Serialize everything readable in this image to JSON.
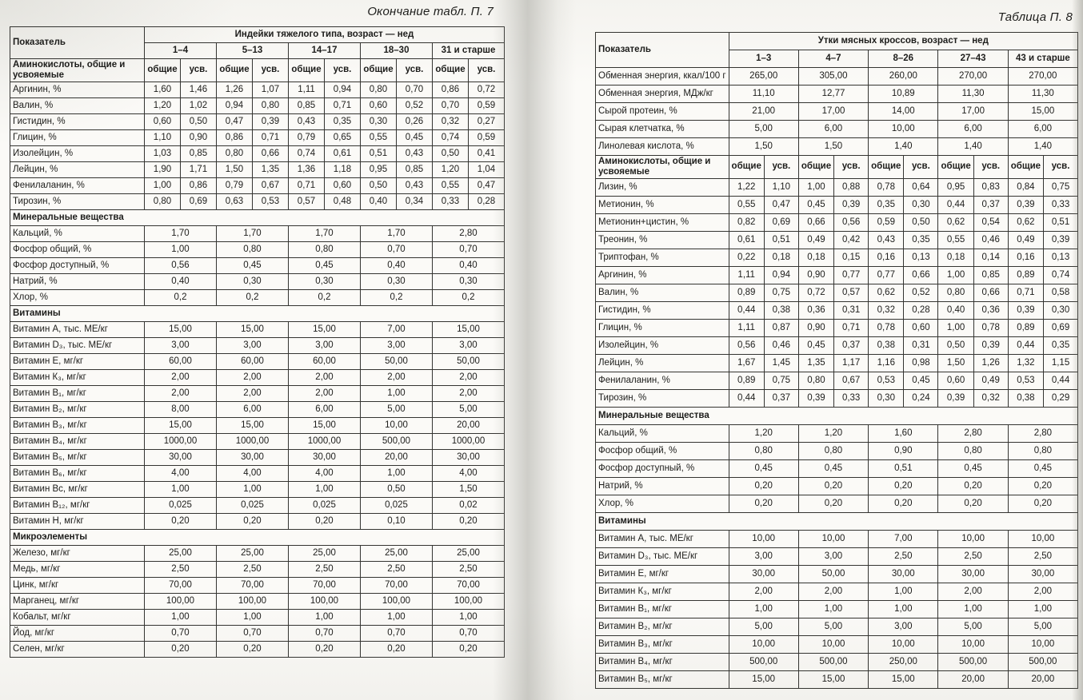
{
  "colors": {
    "paper": "#fbfaf7",
    "ink": "#1d1d1b",
    "table_border": "#343431",
    "gutter_shadow": "#8c8c84"
  },
  "left_page": {
    "caption": "Окончание табл. П. 7",
    "table": {
      "first_col_header": "Показатель",
      "group_header": "Индейки тяжелого типа, возраст — нед",
      "age_groups": [
        "1–4",
        "5–13",
        "14–17",
        "18–30",
        "31 и старше"
      ],
      "subcol_labels": [
        "общие",
        "усв."
      ],
      "amino_header_label": "Аминокислоты, общие и усвояемые",
      "amino_rows": [
        {
          "label": "Аргинин, %",
          "values": [
            "1,60",
            "1,46",
            "1,26",
            "1,07",
            "1,11",
            "0,94",
            "0,80",
            "0,70",
            "0,86",
            "0,72"
          ]
        },
        {
          "label": "Валин, %",
          "values": [
            "1,20",
            "1,02",
            "0,94",
            "0,80",
            "0,85",
            "0,71",
            "0,60",
            "0,52",
            "0,70",
            "0,59"
          ]
        },
        {
          "label": "Гистидин, %",
          "values": [
            "0,60",
            "0,50",
            "0,47",
            "0,39",
            "0,43",
            "0,35",
            "0,30",
            "0,26",
            "0,32",
            "0,27"
          ]
        },
        {
          "label": "Глицин, %",
          "values": [
            "1,10",
            "0,90",
            "0,86",
            "0,71",
            "0,79",
            "0,65",
            "0,55",
            "0,45",
            "0,74",
            "0,59"
          ]
        },
        {
          "label": "Изолейцин, %",
          "values": [
            "1,03",
            "0,85",
            "0,80",
            "0,66",
            "0,74",
            "0,61",
            "0,51",
            "0,43",
            "0,50",
            "0,41"
          ]
        },
        {
          "label": "Лейцин, %",
          "values": [
            "1,90",
            "1,71",
            "1,50",
            "1,35",
            "1,36",
            "1,18",
            "0,95",
            "0,85",
            "1,20",
            "1,04"
          ]
        },
        {
          "label": "Фенилаланин, %",
          "values": [
            "1,00",
            "0,86",
            "0,79",
            "0,67",
            "0,71",
            "0,60",
            "0,50",
            "0,43",
            "0,55",
            "0,47"
          ]
        },
        {
          "label": "Тирозин, %",
          "values": [
            "0,80",
            "0,69",
            "0,63",
            "0,53",
            "0,57",
            "0,48",
            "0,40",
            "0,34",
            "0,33",
            "0,28"
          ]
        }
      ],
      "sections": [
        {
          "title": "Минеральные вещества",
          "rows": [
            {
              "label": "Кальций, %",
              "values": [
                "1,70",
                "1,70",
                "1,70",
                "1,70",
                "2,80"
              ]
            },
            {
              "label": "Фосфор общий, %",
              "values": [
                "1,00",
                "0,80",
                "0,80",
                "0,70",
                "0,70"
              ]
            },
            {
              "label": "Фосфор доступный, %",
              "values": [
                "0,56",
                "0,45",
                "0,45",
                "0,40",
                "0,40"
              ]
            },
            {
              "label": "Натрий, %",
              "values": [
                "0,40",
                "0,30",
                "0,30",
                "0,30",
                "0,30"
              ]
            },
            {
              "label": "Хлор, %",
              "values": [
                "0,2",
                "0,2",
                "0,2",
                "0,2",
                "0,2"
              ]
            }
          ]
        },
        {
          "title": "Витамины",
          "rows": [
            {
              "label": "Витамин А, тыс. МЕ/кг",
              "values": [
                "15,00",
                "15,00",
                "15,00",
                "7,00",
                "15,00"
              ]
            },
            {
              "label": "Витамин D₃, тыс. МЕ/кг",
              "values": [
                "3,00",
                "3,00",
                "3,00",
                "3,00",
                "3,00"
              ]
            },
            {
              "label": "Витамин Е, мг/кг",
              "values": [
                "60,00",
                "60,00",
                "60,00",
                "50,00",
                "50,00"
              ]
            },
            {
              "label": "Витамин К₃, мг/кг",
              "values": [
                "2,00",
                "2,00",
                "2,00",
                "2,00",
                "2,00"
              ]
            },
            {
              "label": "Витамин В₁, мг/кг",
              "values": [
                "2,00",
                "2,00",
                "2,00",
                "1,00",
                "2,00"
              ]
            },
            {
              "label": "Витамин В₂, мг/кг",
              "values": [
                "8,00",
                "6,00",
                "6,00",
                "5,00",
                "5,00"
              ]
            },
            {
              "label": "Витамин В₃, мг/кг",
              "values": [
                "15,00",
                "15,00",
                "15,00",
                "10,00",
                "20,00"
              ]
            },
            {
              "label": "Витамин В₄, мг/кг",
              "values": [
                "1000,00",
                "1000,00",
                "1000,00",
                "500,00",
                "1000,00"
              ]
            },
            {
              "label": "Витамин В₅, мг/кг",
              "values": [
                "30,00",
                "30,00",
                "30,00",
                "20,00",
                "30,00"
              ]
            },
            {
              "label": "Витамин В₆, мг/кг",
              "values": [
                "4,00",
                "4,00",
                "4,00",
                "1,00",
                "4,00"
              ]
            },
            {
              "label": "Витамин Вс, мг/кг",
              "values": [
                "1,00",
                "1,00",
                "1,00",
                "0,50",
                "1,50"
              ]
            },
            {
              "label": "Витамин В₁₂, мг/кг",
              "values": [
                "0,025",
                "0,025",
                "0,025",
                "0,025",
                "0,02"
              ]
            },
            {
              "label": "Витамин Н, мг/кг",
              "values": [
                "0,20",
                "0,20",
                "0,20",
                "0,10",
                "0,20"
              ]
            }
          ]
        },
        {
          "title": "Микроэлементы",
          "rows": [
            {
              "label": "Железо, мг/кг",
              "values": [
                "25,00",
                "25,00",
                "25,00",
                "25,00",
                "25,00"
              ]
            },
            {
              "label": "Медь, мг/кг",
              "values": [
                "2,50",
                "2,50",
                "2,50",
                "2,50",
                "2,50"
              ]
            },
            {
              "label": "Цинк, мг/кг",
              "values": [
                "70,00",
                "70,00",
                "70,00",
                "70,00",
                "70,00"
              ]
            },
            {
              "label": "Марганец, мг/кг",
              "values": [
                "100,00",
                "100,00",
                "100,00",
                "100,00",
                "100,00"
              ]
            },
            {
              "label": "Кобальт, мг/кг",
              "values": [
                "1,00",
                "1,00",
                "1,00",
                "1,00",
                "1,00"
              ]
            },
            {
              "label": "Йод, мг/кг",
              "values": [
                "0,70",
                "0,70",
                "0,70",
                "0,70",
                "0,70"
              ]
            },
            {
              "label": "Селен, мг/кг",
              "values": [
                "0,20",
                "0,20",
                "0,20",
                "0,20",
                "0,20"
              ]
            }
          ]
        }
      ]
    }
  },
  "right_page": {
    "caption": "Таблица П. 8",
    "table": {
      "first_col_header": "Показатель",
      "group_header": "Утки мясных кроссов, возраст — нед",
      "age_groups": [
        "1–3",
        "4–7",
        "8–26",
        "27–43",
        "43 и старше"
      ],
      "subcol_labels": [
        "общие",
        "усв."
      ],
      "pre_rows": [
        {
          "label": "Обменная энергия, ккал/100 г",
          "values": [
            "265,00",
            "305,00",
            "260,00",
            "270,00",
            "270,00"
          ]
        },
        {
          "label": "Обменная энергия, МДж/кг",
          "values": [
            "11,10",
            "12,77",
            "10,89",
            "11,30",
            "11,30"
          ]
        },
        {
          "label": "Сырой протеин, %",
          "values": [
            "21,00",
            "17,00",
            "14,00",
            "17,00",
            "15,00"
          ]
        },
        {
          "label": "Сырая клетчатка, %",
          "values": [
            "5,00",
            "6,00",
            "10,00",
            "6,00",
            "6,00"
          ]
        },
        {
          "label": "Линолевая кислота, %",
          "values": [
            "1,50",
            "1,50",
            "1,40",
            "1,40",
            "1,40"
          ]
        }
      ],
      "amino_header_label": "Аминокислоты, общие и усвояемые",
      "amino_rows": [
        {
          "label": "Лизин, %",
          "values": [
            "1,22",
            "1,10",
            "1,00",
            "0,88",
            "0,78",
            "0,64",
            "0,95",
            "0,83",
            "0,84",
            "0,75"
          ]
        },
        {
          "label": "Метионин, %",
          "values": [
            "0,55",
            "0,47",
            "0,45",
            "0,39",
            "0,35",
            "0,30",
            "0,44",
            "0,37",
            "0,39",
            "0,33"
          ]
        },
        {
          "label": "Метионин+цистин, %",
          "values": [
            "0,82",
            "0,69",
            "0,66",
            "0,56",
            "0,59",
            "0,50",
            "0,62",
            "0,54",
            "0,62",
            "0,51"
          ]
        },
        {
          "label": "Треонин, %",
          "values": [
            "0,61",
            "0,51",
            "0,49",
            "0,42",
            "0,43",
            "0,35",
            "0,55",
            "0,46",
            "0,49",
            "0,39"
          ]
        },
        {
          "label": "Триптофан, %",
          "values": [
            "0,22",
            "0,18",
            "0,18",
            "0,15",
            "0,16",
            "0,13",
            "0,18",
            "0,14",
            "0,16",
            "0,13"
          ]
        },
        {
          "label": "Аргинин, %",
          "values": [
            "1,11",
            "0,94",
            "0,90",
            "0,77",
            "0,77",
            "0,66",
            "1,00",
            "0,85",
            "0,89",
            "0,74"
          ]
        },
        {
          "label": "Валин, %",
          "values": [
            "0,89",
            "0,75",
            "0,72",
            "0,57",
            "0,62",
            "0,52",
            "0,80",
            "0,66",
            "0,71",
            "0,58"
          ]
        },
        {
          "label": "Гистидин, %",
          "values": [
            "0,44",
            "0,38",
            "0,36",
            "0,31",
            "0,32",
            "0,28",
            "0,40",
            "0,36",
            "0,39",
            "0,30"
          ]
        },
        {
          "label": "Глицин, %",
          "values": [
            "1,11",
            "0,87",
            "0,90",
            "0,71",
            "0,78",
            "0,60",
            "1,00",
            "0,78",
            "0,89",
            "0,69"
          ]
        },
        {
          "label": "Изолейцин, %",
          "values": [
            "0,56",
            "0,46",
            "0,45",
            "0,37",
            "0,38",
            "0,31",
            "0,50",
            "0,39",
            "0,44",
            "0,35"
          ]
        },
        {
          "label": "Лейцин, %",
          "values": [
            "1,67",
            "1,45",
            "1,35",
            "1,17",
            "1,16",
            "0,98",
            "1,50",
            "1,26",
            "1,32",
            "1,15"
          ]
        },
        {
          "label": "Фенилаланин, %",
          "values": [
            "0,89",
            "0,75",
            "0,80",
            "0,67",
            "0,53",
            "0,45",
            "0,60",
            "0,49",
            "0,53",
            "0,44"
          ]
        },
        {
          "label": "Тирозин, %",
          "values": [
            "0,44",
            "0,37",
            "0,39",
            "0,33",
            "0,30",
            "0,24",
            "0,39",
            "0,32",
            "0,38",
            "0,29"
          ]
        }
      ],
      "sections": [
        {
          "title": "Минеральные вещества",
          "rows": [
            {
              "label": "Кальций, %",
              "values": [
                "1,20",
                "1,20",
                "1,60",
                "2,80",
                "2,80"
              ]
            },
            {
              "label": "Фосфор общий, %",
              "values": [
                "0,80",
                "0,80",
                "0,90",
                "0,80",
                "0,80"
              ]
            },
            {
              "label": "Фосфор доступный, %",
              "values": [
                "0,45",
                "0,45",
                "0,51",
                "0,45",
                "0,45"
              ]
            },
            {
              "label": "Натрий, %",
              "values": [
                "0,20",
                "0,20",
                "0,20",
                "0,20",
                "0,20"
              ]
            },
            {
              "label": "Хлор, %",
              "values": [
                "0,20",
                "0,20",
                "0,20",
                "0,20",
                "0,20"
              ]
            }
          ]
        },
        {
          "title": "Витамины",
          "rows": [
            {
              "label": "Витамин А, тыс. МЕ/кг",
              "values": [
                "10,00",
                "10,00",
                "7,00",
                "10,00",
                "10,00"
              ]
            },
            {
              "label": "Витамин D₃, тыс. МЕ/кг",
              "values": [
                "3,00",
                "3,00",
                "2,50",
                "2,50",
                "2,50"
              ]
            },
            {
              "label": "Витамин Е, мг/кг",
              "values": [
                "30,00",
                "50,00",
                "30,00",
                "30,00",
                "30,00"
              ]
            },
            {
              "label": "Витамин К₃, мг/кг",
              "values": [
                "2,00",
                "2,00",
                "1,00",
                "2,00",
                "2,00"
              ]
            },
            {
              "label": "Витамин В₁, мг/кг",
              "values": [
                "1,00",
                "1,00",
                "1,00",
                "1,00",
                "1,00"
              ]
            },
            {
              "label": "Витамин В₂, мг/кг",
              "values": [
                "5,00",
                "5,00",
                "3,00",
                "5,00",
                "5,00"
              ]
            },
            {
              "label": "Витамин В₃, мг/кг",
              "values": [
                "10,00",
                "10,00",
                "10,00",
                "10,00",
                "10,00"
              ]
            },
            {
              "label": "Витамин В₄, мг/кг",
              "values": [
                "500,00",
                "500,00",
                "250,00",
                "500,00",
                "500,00"
              ]
            },
            {
              "label": "Витамин В₅, мг/кг",
              "values": [
                "15,00",
                "15,00",
                "15,00",
                "20,00",
                "20,00"
              ]
            }
          ]
        }
      ]
    }
  }
}
